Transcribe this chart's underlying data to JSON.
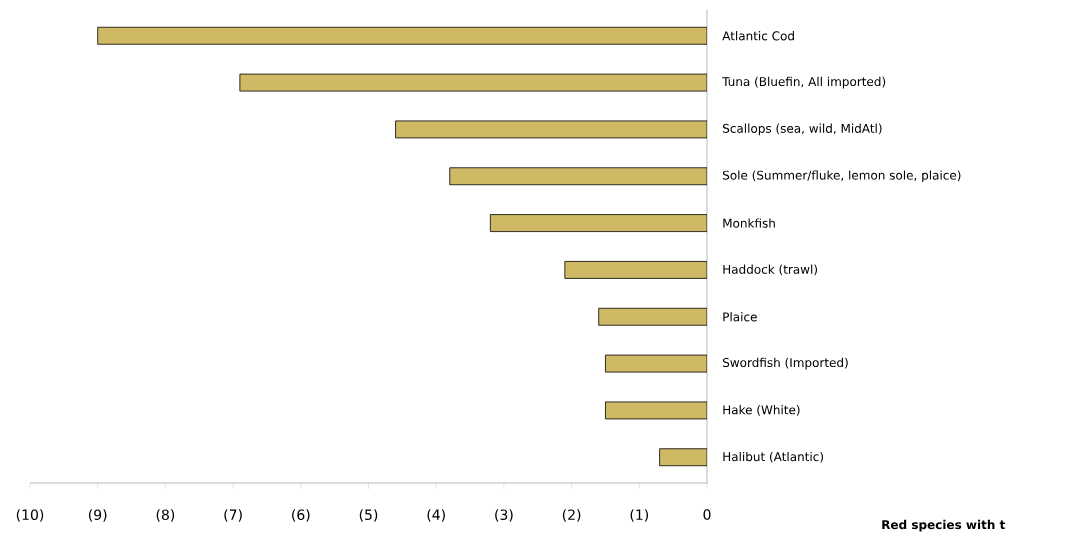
{
  "chart_data": {
    "type": "bar",
    "orientation": "horizontal",
    "xlabel": "Red species with t",
    "categories": [
      "Atlantic Cod",
      "Tuna (Bluefin, All imported)",
      "Scallops (sea, wild, MidAtl)",
      "Sole (Summer/fluke, lemon sole, plaice)",
      "Monkfish",
      "Haddock (trawl)",
      "Plaice",
      "Swordfish (Imported)",
      "Hake (White)",
      "Halibut (Atlantic)"
    ],
    "values": [
      -9.0,
      -6.9,
      -4.6,
      -3.8,
      -3.2,
      -2.1,
      -1.6,
      -1.5,
      -1.5,
      -0.7
    ],
    "color": "#cfb965",
    "xlim": [
      -10,
      0
    ],
    "xticks": [
      {
        "value": -10,
        "label": "(10)"
      },
      {
        "value": -9,
        "label": "(9)"
      },
      {
        "value": -8,
        "label": "(8)"
      },
      {
        "value": -7,
        "label": "(7)"
      },
      {
        "value": -6,
        "label": "(6)"
      },
      {
        "value": -5,
        "label": "(5)"
      },
      {
        "value": -4,
        "label": "(4)"
      },
      {
        "value": -3,
        "label": "(3)"
      },
      {
        "value": -2,
        "label": "(2)"
      },
      {
        "value": -1,
        "label": "(1)"
      },
      0
    ]
  }
}
